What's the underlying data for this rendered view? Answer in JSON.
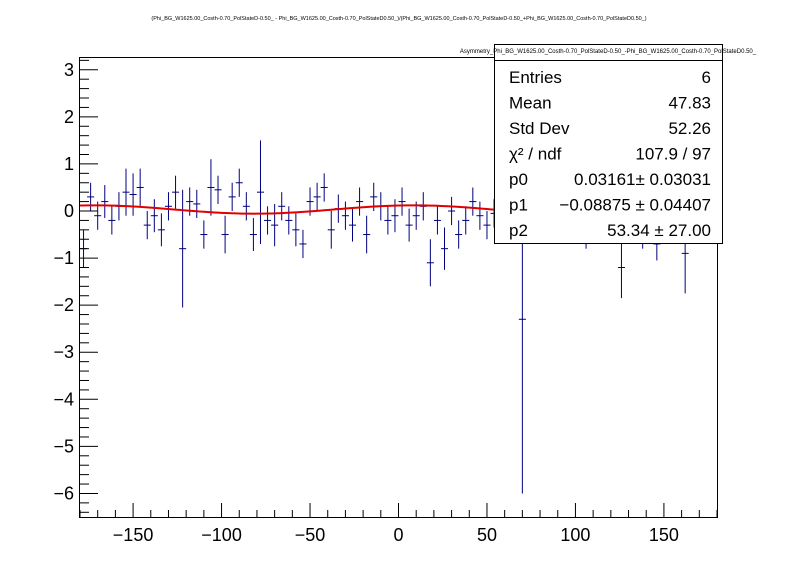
{
  "chart_data": {
    "type": "scatter",
    "title": "(Phi_BG_W1625.00_Costh-0.70_PolStateD-0.50_ - Phi_BG_W1625.00_Costh-0.70_PolStateD0.50_)/(Phi_BG_W1625.00_Costh-0.70_PolStateD-0.50_+Phi_BG_W1625.00_Costh-0.70_PolStateD0.50_)",
    "xlabel": "",
    "ylabel": "",
    "xlim": [
      -180,
      180
    ],
    "ylim": [
      -6.5,
      3.25
    ],
    "grid": false,
    "x_ticks": [
      -150,
      -100,
      -50,
      0,
      50,
      100,
      150
    ],
    "x_tick_labels": [
      "−150",
      "−100",
      "−50",
      "0",
      "50",
      "100",
      "150"
    ],
    "y_ticks": [
      -6,
      -5,
      -4,
      -3,
      -2,
      -1,
      0,
      1,
      2,
      3
    ],
    "y_tick_labels": [
      "−6",
      "−5",
      "−4",
      "−3",
      "−2",
      "−1",
      "0",
      "1",
      "2",
      "3"
    ],
    "series": [
      {
        "kind": "points_with_errors",
        "color": "#000080",
        "x": [
          -178,
          -174,
          -170,
          -166,
          -162,
          -158,
          -154,
          -150,
          -146,
          -142,
          -138,
          -134,
          -130,
          -126,
          -122,
          -118,
          -114,
          -110,
          -106,
          -102,
          -98,
          -94,
          -90,
          -86,
          -82,
          -78,
          -74,
          -70,
          -66,
          -62,
          -58,
          -54,
          -50,
          -46,
          -42,
          -38,
          -34,
          -30,
          -26,
          -22,
          -18,
          -14,
          -10,
          -6,
          -2,
          2,
          6,
          10,
          14,
          18,
          22,
          26,
          30,
          34,
          38,
          42,
          46,
          50,
          54,
          58,
          62,
          66,
          70,
          74,
          78,
          82,
          86,
          90,
          94,
          98,
          102,
          106,
          110,
          114,
          118,
          122,
          126,
          130,
          134,
          138,
          142,
          146,
          150,
          154,
          158,
          162,
          166
        ],
        "y": [
          -0.8,
          0.3,
          -0.1,
          0.2,
          -0.2,
          0.1,
          0.4,
          0.35,
          0.5,
          -0.3,
          -0.1,
          -0.4,
          0.1,
          0.4,
          -0.8,
          0.2,
          0.15,
          -0.5,
          0.5,
          0.45,
          -0.5,
          0.3,
          0.6,
          0.1,
          -0.5,
          0.4,
          -0.2,
          -0.3,
          0.1,
          -0.2,
          -0.4,
          -0.7,
          0.2,
          0.3,
          0.5,
          -0.4,
          0.05,
          -0.1,
          -0.3,
          0.2,
          -0.5,
          0.3,
          0.1,
          -0.2,
          -0.1,
          0.2,
          -0.3,
          -0.1,
          0.1,
          -1.1,
          -0.2,
          -0.8,
          0.0,
          -0.5,
          -0.2,
          0.2,
          -0.1,
          -0.3,
          -0.05,
          0.1,
          -0.2,
          -0.1,
          -2.3,
          -0.1,
          0.2,
          -0.1,
          0.1,
          -0.4,
          -0.2,
          0.0,
          -0.1,
          -0.5,
          0.1,
          -0.3,
          0.2,
          0.1,
          -1.2,
          0.3,
          0.1,
          -0.5,
          0.2,
          -0.7,
          0.1,
          -0.2,
          0.0,
          -0.9,
          -0.3
        ],
        "yerr": [
          0.4,
          0.3,
          0.3,
          0.35,
          0.3,
          0.3,
          0.5,
          0.45,
          0.4,
          0.3,
          0.35,
          0.35,
          0.3,
          0.35,
          1.25,
          0.3,
          0.3,
          0.3,
          0.6,
          0.3,
          0.4,
          0.3,
          0.3,
          0.3,
          0.35,
          1.1,
          0.3,
          0.45,
          0.3,
          0.3,
          0.35,
          0.3,
          0.3,
          0.3,
          0.3,
          0.4,
          0.3,
          0.3,
          0.35,
          0.3,
          0.4,
          0.3,
          0.3,
          0.3,
          0.35,
          0.3,
          0.35,
          0.3,
          0.3,
          0.5,
          0.3,
          0.45,
          0.3,
          0.3,
          0.3,
          0.3,
          0.3,
          0.3,
          0.3,
          0.3,
          0.4,
          0.3,
          3.7,
          0.3,
          0.3,
          0.3,
          0.3,
          0.3,
          0.3,
          0.3,
          0.3,
          0.3,
          0.3,
          0.3,
          0.3,
          0.3,
          0.65,
          0.3,
          0.3,
          0.3,
          0.3,
          0.35,
          0.3,
          0.3,
          0.3,
          0.85,
          0.4
        ]
      },
      {
        "kind": "fit_curve",
        "color": "#e00000",
        "function": "p0 + p1*sin(2*pi*(x - p2)/180)",
        "params": {
          "p0": 0.03161,
          "p1": -0.08875,
          "p2": 53.34
        }
      }
    ],
    "stats_box": {
      "title": "Asymmetry_Phi_BG_W1625.00_Costh-0.70_PolStateD-0.50_-Phi_BG_W1625.00_Costh-0.70_PolStateD0.50_",
      "placement": "top-right",
      "rows": [
        {
          "label": "Entries",
          "value": "6"
        },
        {
          "label": "Mean",
          "value": "47.83"
        },
        {
          "label": "Std Dev",
          "value": "52.26"
        },
        {
          "label": "χ² / ndf",
          "value": "107.9 / 97"
        },
        {
          "label": "p0",
          "value": "0.03161± 0.03031"
        },
        {
          "label": "p1",
          "value": "−0.08875 ± 0.04407"
        },
        {
          "label": "p2",
          "value": "53.34 ± 27.00"
        }
      ]
    }
  }
}
